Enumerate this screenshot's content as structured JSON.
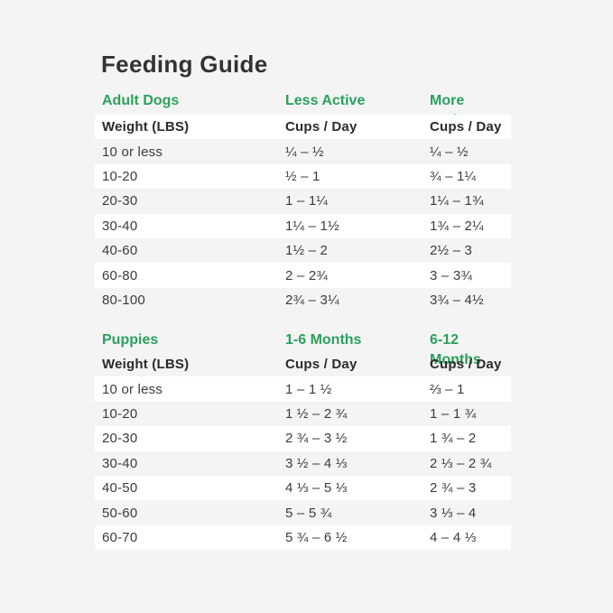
{
  "title": "Feeding Guide",
  "colors": {
    "background": "#f4f4f5",
    "row_white": "#ffffff",
    "accent_green": "#2aa15b",
    "text_dark": "#333333"
  },
  "adult": {
    "section_label": "Adult Dogs",
    "col2_label": "Less Active",
    "col3_label": "More Active",
    "header": {
      "weight": "Weight (LBS)",
      "c2": "Cups / Day",
      "c3": "Cups / Day"
    },
    "rows": [
      {
        "weight": "10 or less",
        "c2": "¼ – ½",
        "c3": "¼ – ½"
      },
      {
        "weight": "10-20",
        "c2": "½ – 1",
        "c3": "¾ – 1¼"
      },
      {
        "weight": "20-30",
        "c2": "1 – 1¼",
        "c3": "1¼ – 1¾"
      },
      {
        "weight": "30-40",
        "c2": "1¼ – 1½",
        "c3": "1¾ – 2¼"
      },
      {
        "weight": "40-60",
        "c2": "1½ – 2",
        "c3": "2½ – 3"
      },
      {
        "weight": "60-80",
        "c2": "2 – 2¾",
        "c3": "3 – 3¾"
      },
      {
        "weight": "80-100",
        "c2": "2¾ – 3¼",
        "c3": "3¾ – 4½"
      }
    ]
  },
  "puppies": {
    "section_label": "Puppies",
    "col2_label": "1-6 Months",
    "col3_label": "6-12 Months",
    "header": {
      "weight": "Weight (LBS)",
      "c2": "Cups / Day",
      "c3": "Cups / Day"
    },
    "rows": [
      {
        "weight": "10 or less",
        "c2": "1 – 1 ½",
        "c3": "⅔ – 1"
      },
      {
        "weight": "10-20",
        "c2": "1 ½ – 2 ¾",
        "c3": "1 – 1 ¾"
      },
      {
        "weight": "20-30",
        "c2": "2 ¾ – 3 ½",
        "c3": "1 ¾ – 2"
      },
      {
        "weight": "30-40",
        "c2": "3 ½ – 4 ⅓",
        "c3": "2 ⅓ – 2 ¾"
      },
      {
        "weight": "40-50",
        "c2": "4 ⅓ – 5 ⅓",
        "c3": "2 ¾ – 3"
      },
      {
        "weight": "50-60",
        "c2": "5 – 5 ¾",
        "c3": "3 ⅓ – 4"
      },
      {
        "weight": "60-70",
        "c2": "5 ¾ – 6 ½",
        "c3": "4 – 4 ⅓"
      }
    ]
  }
}
